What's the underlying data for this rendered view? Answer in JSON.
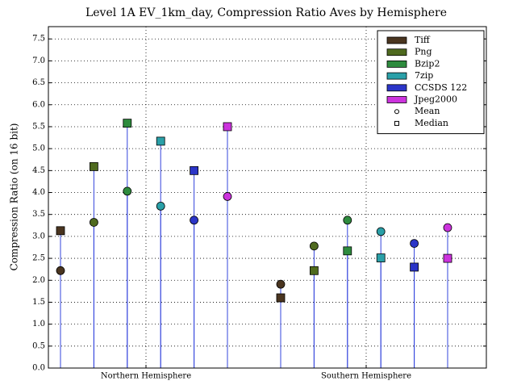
{
  "chart_data": {
    "type": "stem",
    "title": "Level 1A EV_1km_day, Compression Ratio Aves by Hemisphere",
    "y_label": "Compression Ratio (on 16 bit)",
    "categories": [
      "Northern Hemisphere",
      "Southern Hemisphere"
    ],
    "markers": [
      {
        "name": "Mean",
        "shape": "circle"
      },
      {
        "name": "Median",
        "shape": "square"
      }
    ],
    "series": [
      {
        "name": "Tiff",
        "color": "#4a3520",
        "mean": [
          2.22,
          1.91
        ],
        "median": [
          3.13,
          1.6
        ]
      },
      {
        "name": "Png",
        "color": "#4f6a1f",
        "mean": [
          3.32,
          2.78
        ],
        "median": [
          4.59,
          2.22
        ]
      },
      {
        "name": "Bzip2",
        "color": "#2e8b3e",
        "mean": [
          4.03,
          3.37
        ],
        "median": [
          5.58,
          2.67
        ]
      },
      {
        "name": "7zip",
        "color": "#2aa0a8",
        "mean": [
          3.69,
          3.11
        ],
        "median": [
          5.17,
          2.51
        ]
      },
      {
        "name": "CCSDS 122",
        "color": "#2b35c8",
        "mean": [
          3.37,
          2.84
        ],
        "median": [
          4.5,
          2.3
        ]
      },
      {
        "name": "Jpeg2000",
        "color": "#cc33dd",
        "mean": [
          3.91,
          3.2
        ],
        "median": [
          5.5,
          2.5
        ]
      }
    ],
    "stem_color": "#3344dd",
    "ylim": [
      0,
      7.78
    ],
    "yticks": [
      {
        "value": 0,
        "label": "0.0"
      },
      0.5,
      {
        "value": 1,
        "label": "1.0"
      },
      1.5,
      {
        "value": 2,
        "label": "2.0"
      },
      2.5,
      {
        "value": 3,
        "label": "3.0"
      },
      3.5,
      {
        "value": 4,
        "label": "4.0"
      },
      4.5,
      {
        "value": 5,
        "label": "5.0"
      },
      5.5,
      {
        "value": 6,
        "label": "6.0"
      },
      6.5,
      {
        "value": 7,
        "label": "7.0"
      },
      7.5
    ],
    "grid": true,
    "legend": "upper right"
  }
}
